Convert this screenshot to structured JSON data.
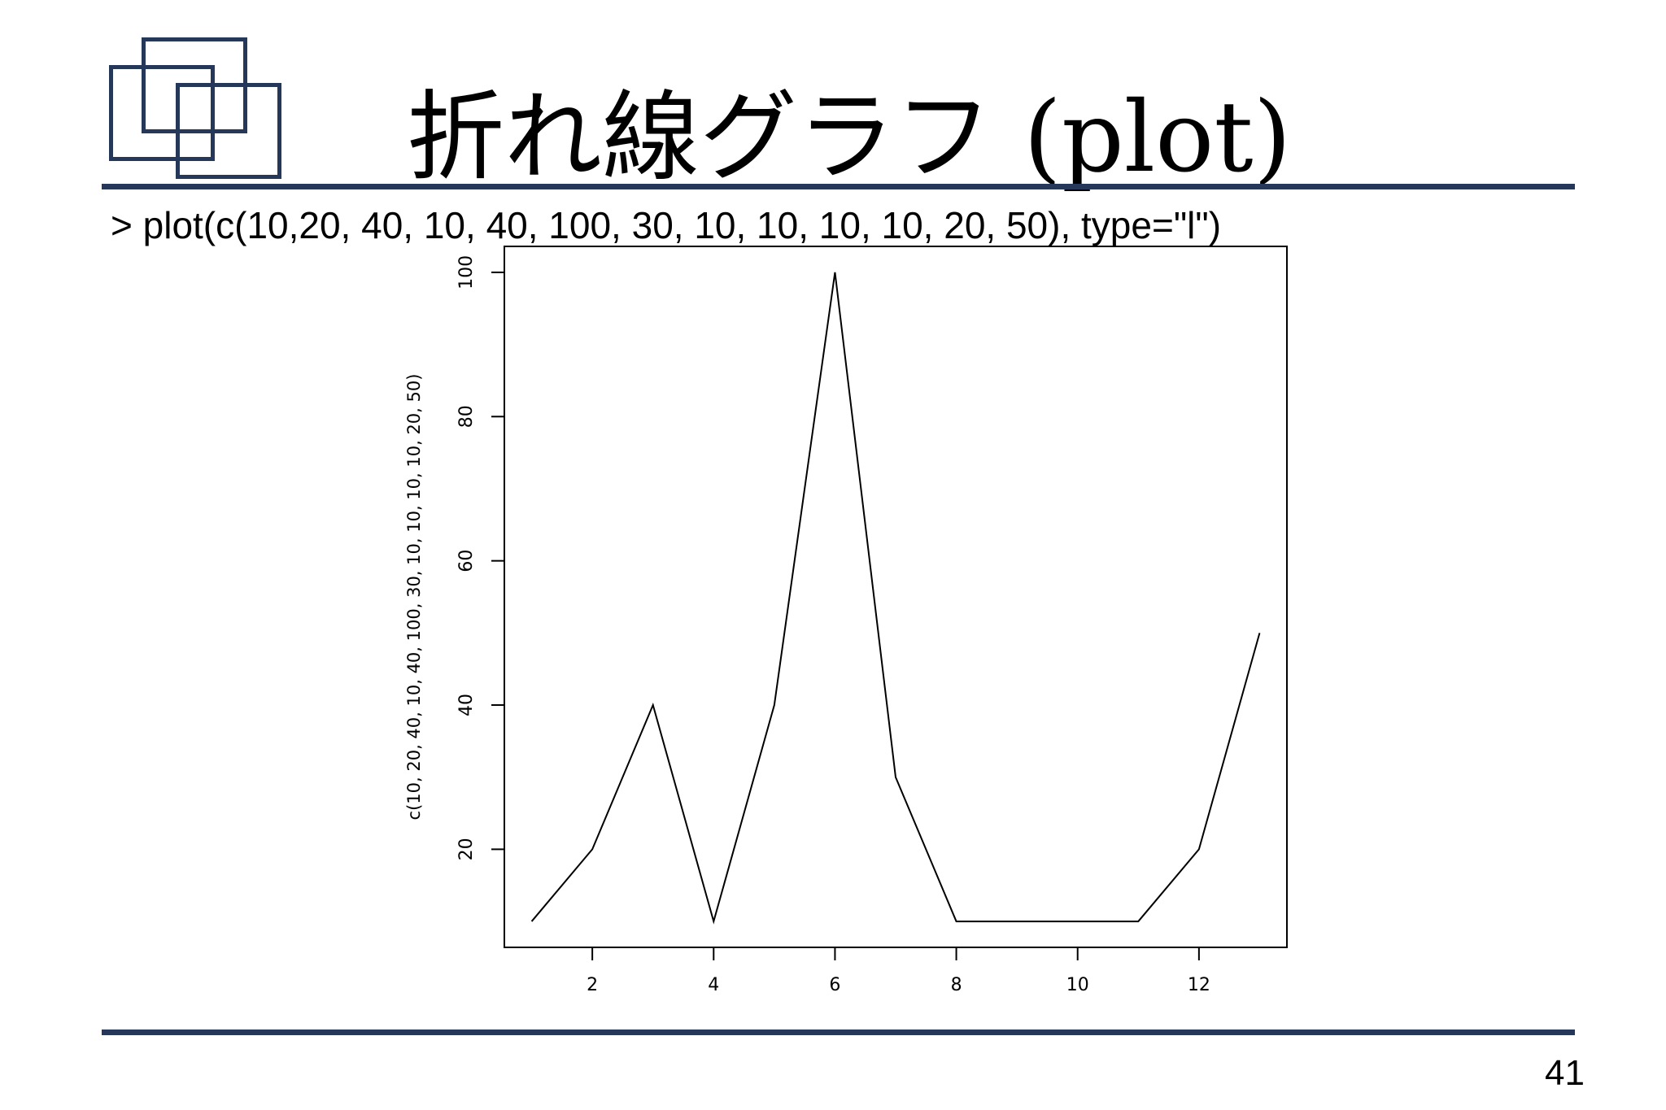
{
  "slide": {
    "title": "折れ線グラフ (plot)",
    "command": "> plot(c(10,20, 40, 10, 40, 100, 30, 10, 10, 10, 10, 20, 50), type=\"l\")",
    "page_number": "41",
    "accent_color": "#26385a"
  },
  "chart_data": {
    "type": "line",
    "x": [
      1,
      2,
      3,
      4,
      5,
      6,
      7,
      8,
      9,
      10,
      11,
      12,
      13
    ],
    "series": [
      {
        "values": [
          10,
          20,
          40,
          10,
          40,
          100,
          30,
          10,
          10,
          10,
          10,
          20,
          50
        ]
      }
    ],
    "title": "",
    "xlabel": "",
    "ylabel": "c(10, 20, 40, 10, 40, 100, 30, 10, 10, 10, 10, 20, 50)",
    "xlim": [
      0.55,
      13.45
    ],
    "ylim": [
      6.4,
      103.6
    ],
    "xticks": [
      2,
      4,
      6,
      8,
      10,
      12
    ],
    "yticks": [
      20,
      40,
      60,
      80,
      100
    ],
    "grid": false,
    "line_color": "#000000"
  }
}
